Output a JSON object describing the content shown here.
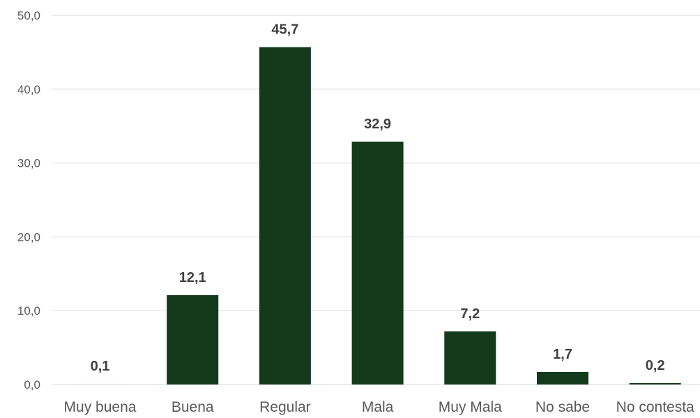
{
  "chart_data": {
    "type": "bar",
    "categories": [
      "Muy buena",
      "Buena",
      "Regular",
      "Mala",
      "Muy Mala",
      "No sabe",
      "No contesta"
    ],
    "values": [
      0.1,
      12.1,
      45.7,
      32.9,
      7.2,
      1.7,
      0.2
    ],
    "value_labels": [
      "0,1",
      "12,1",
      "45,7",
      "32,9",
      "7,2",
      "1,7",
      "0,2"
    ],
    "y_ticks": [
      "0,0",
      "10,0",
      "20,0",
      "30,0",
      "40,0",
      "50,0"
    ],
    "ylim": [
      0,
      50
    ],
    "grid": true,
    "bar_color": "#133a1b",
    "title": "",
    "xlabel": "",
    "ylabel": ""
  }
}
